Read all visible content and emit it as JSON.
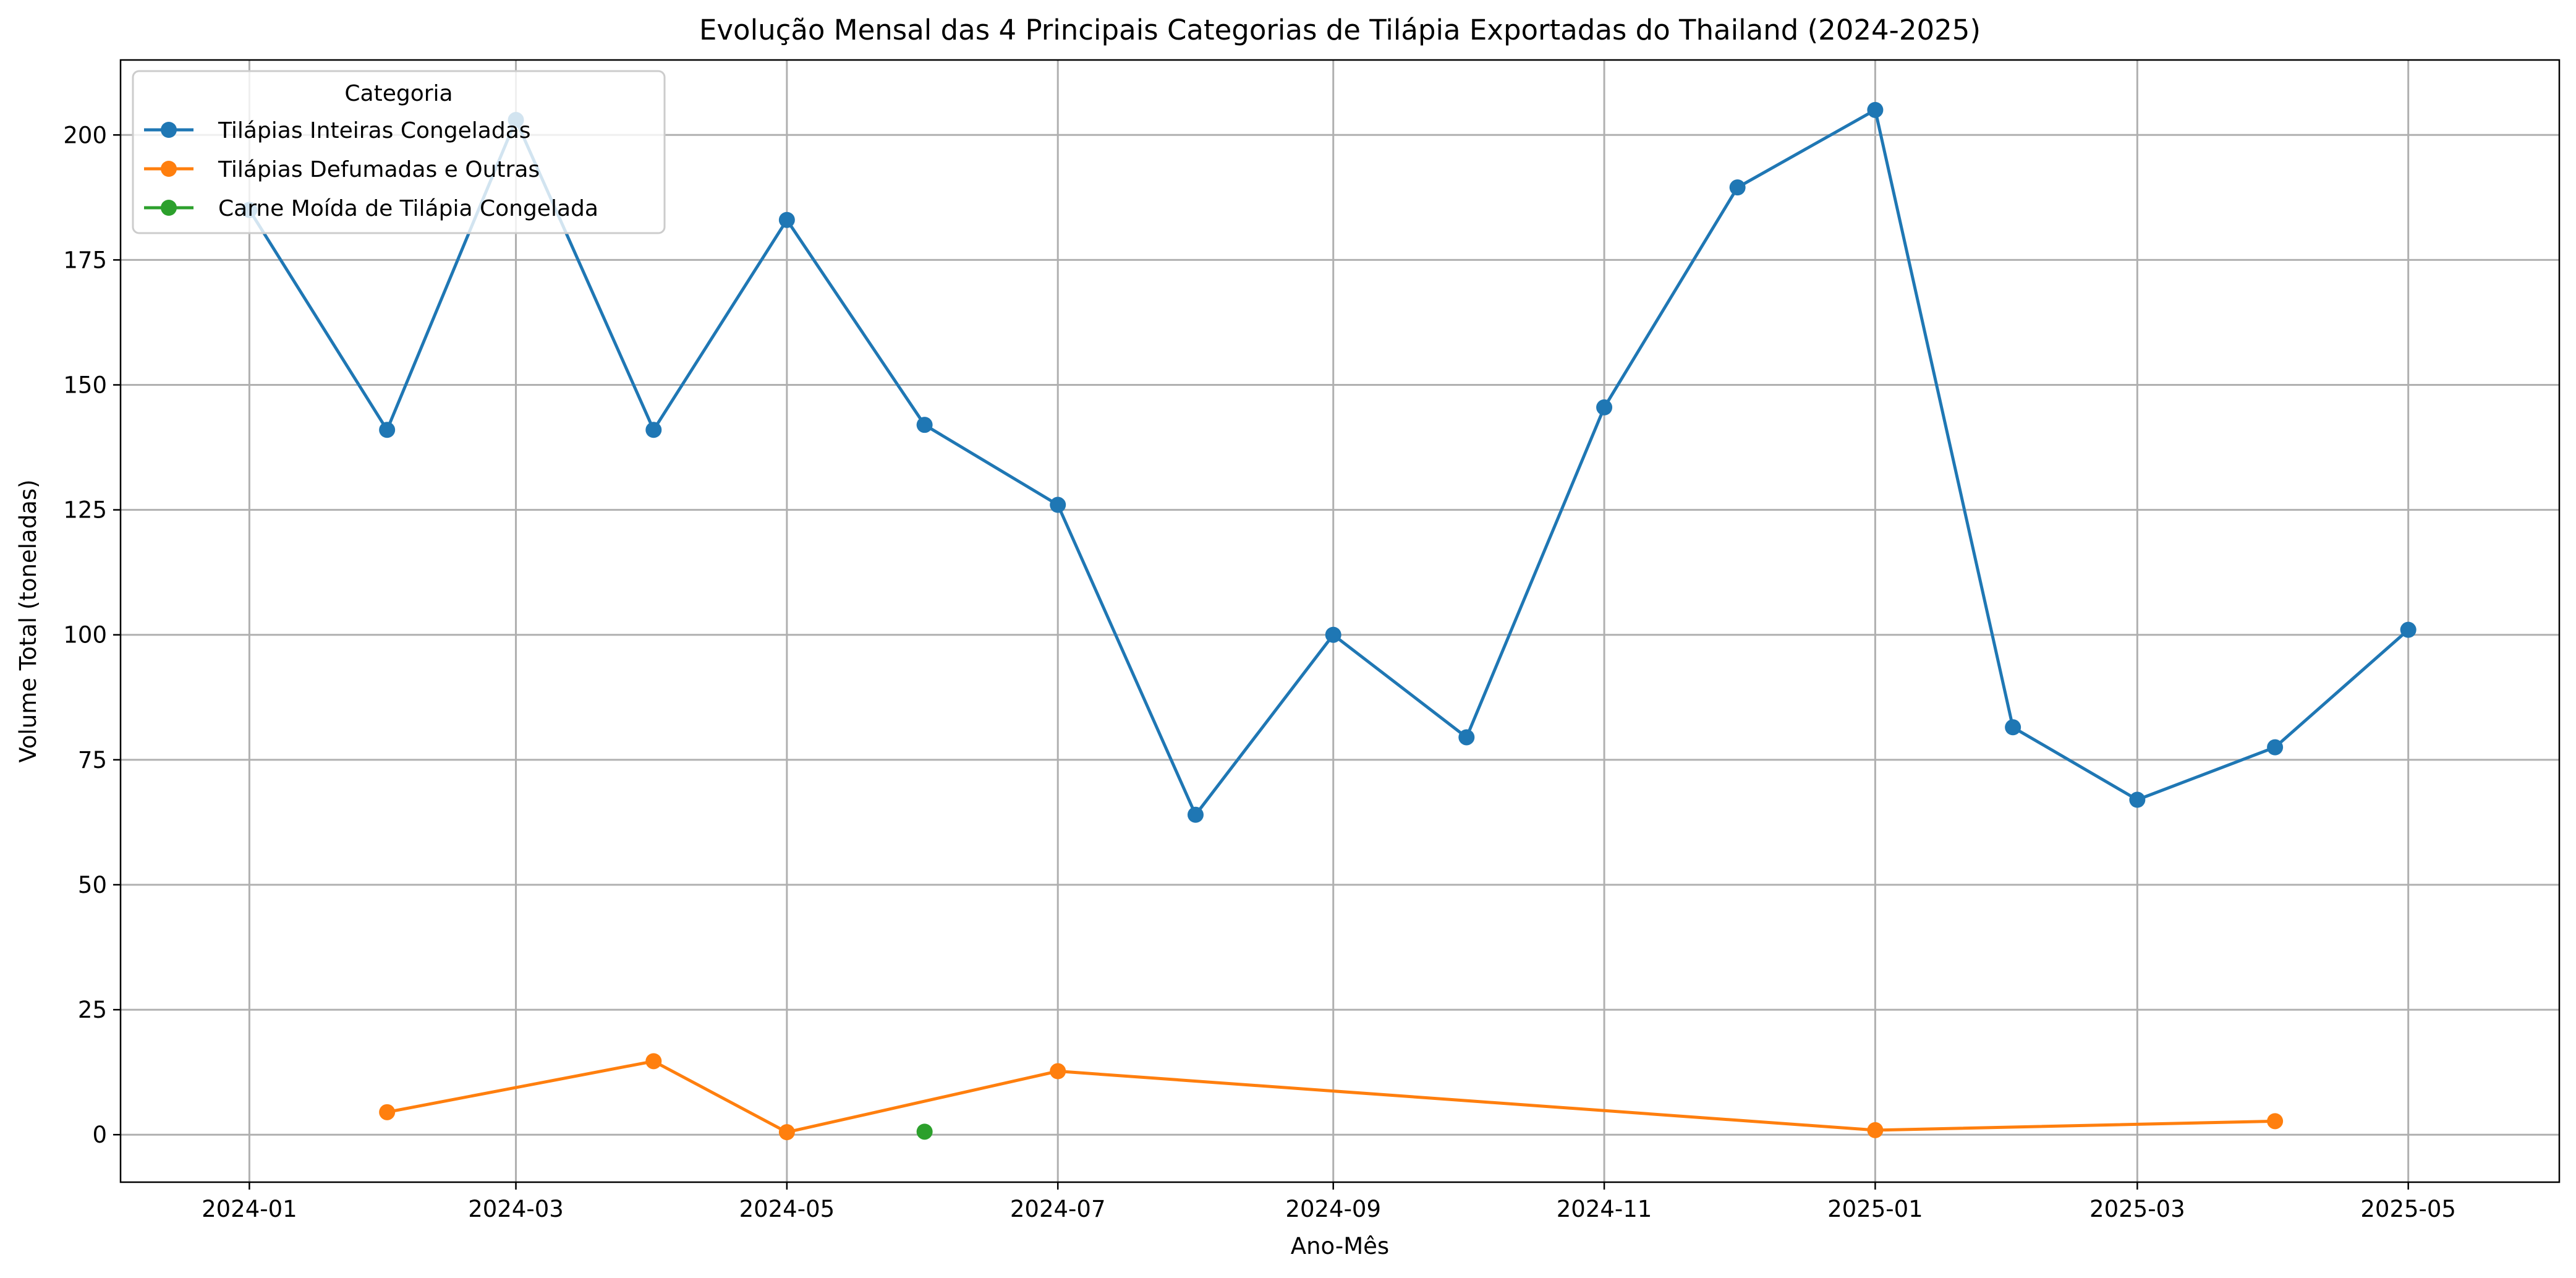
{
  "chart_data": {
    "type": "line",
    "title": "Evolução Mensal das 4 Principais Categorias de Tilápia Exportadas do Thailand (2024-2025)",
    "xlabel": "Ano-Mês",
    "ylabel": "Volume Total (toneladas)",
    "xlim": [
      "2023-12-03",
      "2025-06-04"
    ],
    "ylim": [
      -9.5,
      215
    ],
    "x_ticks": [
      "2024-01",
      "2024-03",
      "2024-05",
      "2024-07",
      "2024-09",
      "2024-11",
      "2025-01",
      "2025-03",
      "2025-05"
    ],
    "y_ticks": [
      0,
      25,
      50,
      75,
      100,
      125,
      150,
      175,
      200
    ],
    "grid": true,
    "legend": {
      "title": "Categoria",
      "placement": "top-left"
    },
    "series": [
      {
        "name": "Tilápias Inteiras Congeladas",
        "color": "#1f77b4",
        "points": [
          {
            "x": "2024-01-01",
            "y": 185
          },
          {
            "x": "2024-02-01",
            "y": 141
          },
          {
            "x": "2024-03-01",
            "y": 203
          },
          {
            "x": "2024-04-01",
            "y": 141
          },
          {
            "x": "2024-05-01",
            "y": 183
          },
          {
            "x": "2024-06-01",
            "y": 142
          },
          {
            "x": "2024-07-01",
            "y": 126
          },
          {
            "x": "2024-08-01",
            "y": 64
          },
          {
            "x": "2024-09-01",
            "y": 100
          },
          {
            "x": "2024-10-01",
            "y": 79.5
          },
          {
            "x": "2024-11-01",
            "y": 145.5
          },
          {
            "x": "2024-12-01",
            "y": 189.5
          },
          {
            "x": "2025-01-01",
            "y": 205
          },
          {
            "x": "2025-02-01",
            "y": 81.5
          },
          {
            "x": "2025-03-01",
            "y": 67
          },
          {
            "x": "2025-04-01",
            "y": 77.5
          },
          {
            "x": "2025-05-01",
            "y": 101
          }
        ]
      },
      {
        "name": "Tilápias Defumadas e Outras",
        "color": "#ff7f0e",
        "points": [
          {
            "x": "2024-02-01",
            "y": 4.5
          },
          {
            "x": "2024-04-01",
            "y": 14.7
          },
          {
            "x": "2024-05-01",
            "y": 0.5
          },
          {
            "x": "2024-07-01",
            "y": 12.7
          },
          {
            "x": "2025-01-01",
            "y": 0.9
          },
          {
            "x": "2025-04-01",
            "y": 2.7
          }
        ]
      },
      {
        "name": "Carne Moída de Tilápia Congelada",
        "color": "#2ca02c",
        "points": [
          {
            "x": "2024-06-01",
            "y": 0.6
          }
        ]
      }
    ]
  }
}
